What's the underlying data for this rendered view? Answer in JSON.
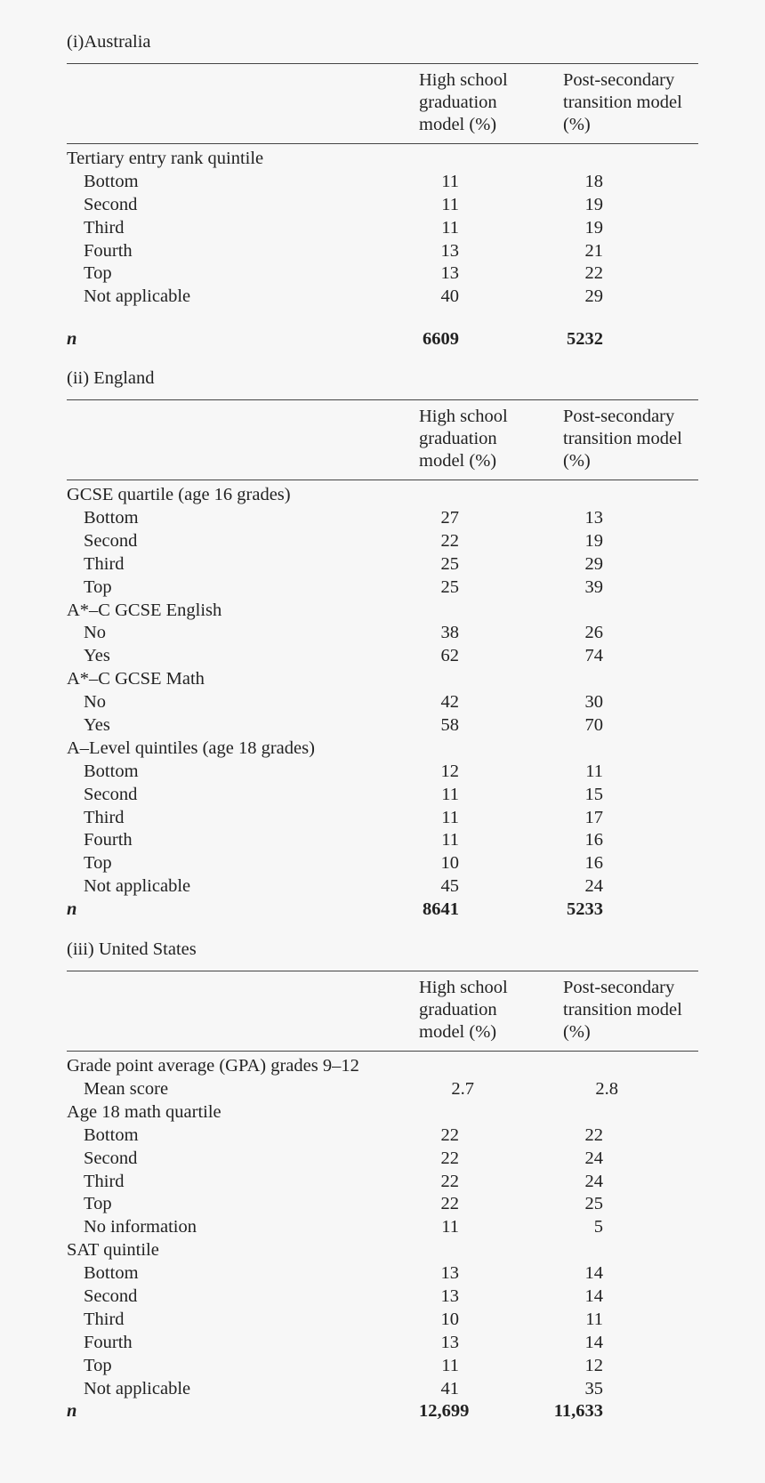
{
  "columns": {
    "col1": "High school graduation model (%)",
    "col2": "Post-secondary transition model (%)"
  },
  "header_lines": {
    "col1": [
      "High school",
      "graduation",
      "model (%)"
    ],
    "col2": [
      "Post-secondary",
      "transition model",
      "(%)"
    ]
  },
  "sections": [
    {
      "title": "(i)Australia",
      "rows": [
        {
          "label": "Tertiary entry rank quintile",
          "indent": false,
          "v1": "",
          "v2": ""
        },
        {
          "label": "Bottom",
          "indent": true,
          "v1": "11",
          "v2": "18"
        },
        {
          "label": "Second",
          "indent": true,
          "v1": "11",
          "v2": "19"
        },
        {
          "label": "Third",
          "indent": true,
          "v1": "11",
          "v2": "19"
        },
        {
          "label": "Fourth",
          "indent": true,
          "v1": "13",
          "v2": "21"
        },
        {
          "label": "Top",
          "indent": true,
          "v1": "13",
          "v2": "22"
        },
        {
          "label": "Not applicable",
          "indent": true,
          "v1": "40",
          "v2": "29"
        },
        {
          "label": "n",
          "indent": false,
          "v1": "6609",
          "v2": "5232",
          "total": true
        }
      ]
    },
    {
      "title": "(ii) England",
      "rows": [
        {
          "label": "GCSE quartile (age 16 grades)",
          "indent": false,
          "v1": "",
          "v2": ""
        },
        {
          "label": "Bottom",
          "indent": true,
          "v1": "27",
          "v2": "13"
        },
        {
          "label": "Second",
          "indent": true,
          "v1": "22",
          "v2": "19"
        },
        {
          "label": "Third",
          "indent": true,
          "v1": "25",
          "v2": "29"
        },
        {
          "label": "Top",
          "indent": true,
          "v1": "25",
          "v2": "39"
        },
        {
          "label": "A*–C GCSE English",
          "indent": false,
          "v1": "",
          "v2": ""
        },
        {
          "label": "No",
          "indent": true,
          "v1": "38",
          "v2": "26"
        },
        {
          "label": "Yes",
          "indent": true,
          "v1": "62",
          "v2": "74"
        },
        {
          "label": "A*–C GCSE Math",
          "indent": false,
          "v1": "",
          "v2": ""
        },
        {
          "label": "No",
          "indent": true,
          "v1": "42",
          "v2": "30"
        },
        {
          "label": "Yes",
          "indent": true,
          "v1": "58",
          "v2": "70"
        },
        {
          "label": "A–Level quintiles (age 18 grades)",
          "indent": false,
          "v1": "",
          "v2": ""
        },
        {
          "label": "Bottom",
          "indent": true,
          "v1": "12",
          "v2": "11"
        },
        {
          "label": "Second",
          "indent": true,
          "v1": "11",
          "v2": "15"
        },
        {
          "label": "Third",
          "indent": true,
          "v1": "11",
          "v2": "17"
        },
        {
          "label": "Fourth",
          "indent": true,
          "v1": "11",
          "v2": "16"
        },
        {
          "label": "Top",
          "indent": true,
          "v1": "10",
          "v2": "16"
        },
        {
          "label": "Not applicable",
          "indent": true,
          "v1": "45",
          "v2": "24"
        },
        {
          "label": "n",
          "indent": false,
          "v1": "8641",
          "v2": "5233",
          "total": true
        }
      ]
    },
    {
      "title": "(iii) United States",
      "rows": [
        {
          "label": "Grade point average (GPA) grades 9–12",
          "indent": false,
          "v1": "",
          "v2": ""
        },
        {
          "label": "Mean score",
          "indent": true,
          "v1": "2.7",
          "v2": "2.8",
          "decimal": true
        },
        {
          "label": "Age 18 math quartile",
          "indent": false,
          "v1": "",
          "v2": ""
        },
        {
          "label": "Bottom",
          "indent": true,
          "v1": "22",
          "v2": "22"
        },
        {
          "label": "Second",
          "indent": true,
          "v1": "22",
          "v2": "24"
        },
        {
          "label": "Third",
          "indent": true,
          "v1": "22",
          "v2": "24"
        },
        {
          "label": "Top",
          "indent": true,
          "v1": "22",
          "v2": "25"
        },
        {
          "label": "No information",
          "indent": true,
          "v1": "11",
          "v2": "5"
        },
        {
          "label": "SAT quintile",
          "indent": false,
          "v1": "",
          "v2": ""
        },
        {
          "label": "Bottom",
          "indent": true,
          "v1": "13",
          "v2": "14"
        },
        {
          "label": "Second",
          "indent": true,
          "v1": "13",
          "v2": "14"
        },
        {
          "label": "Third",
          "indent": true,
          "v1": "10",
          "v2": "11"
        },
        {
          "label": "Fourth",
          "indent": true,
          "v1": "13",
          "v2": "14"
        },
        {
          "label": "Top",
          "indent": true,
          "v1": "11",
          "v2": "12"
        },
        {
          "label": "Not applicable",
          "indent": true,
          "v1": "41",
          "v2": "35"
        },
        {
          "label": "n",
          "indent": false,
          "v1": "12,699",
          "v2": "11,633",
          "total": true
        }
      ]
    }
  ]
}
